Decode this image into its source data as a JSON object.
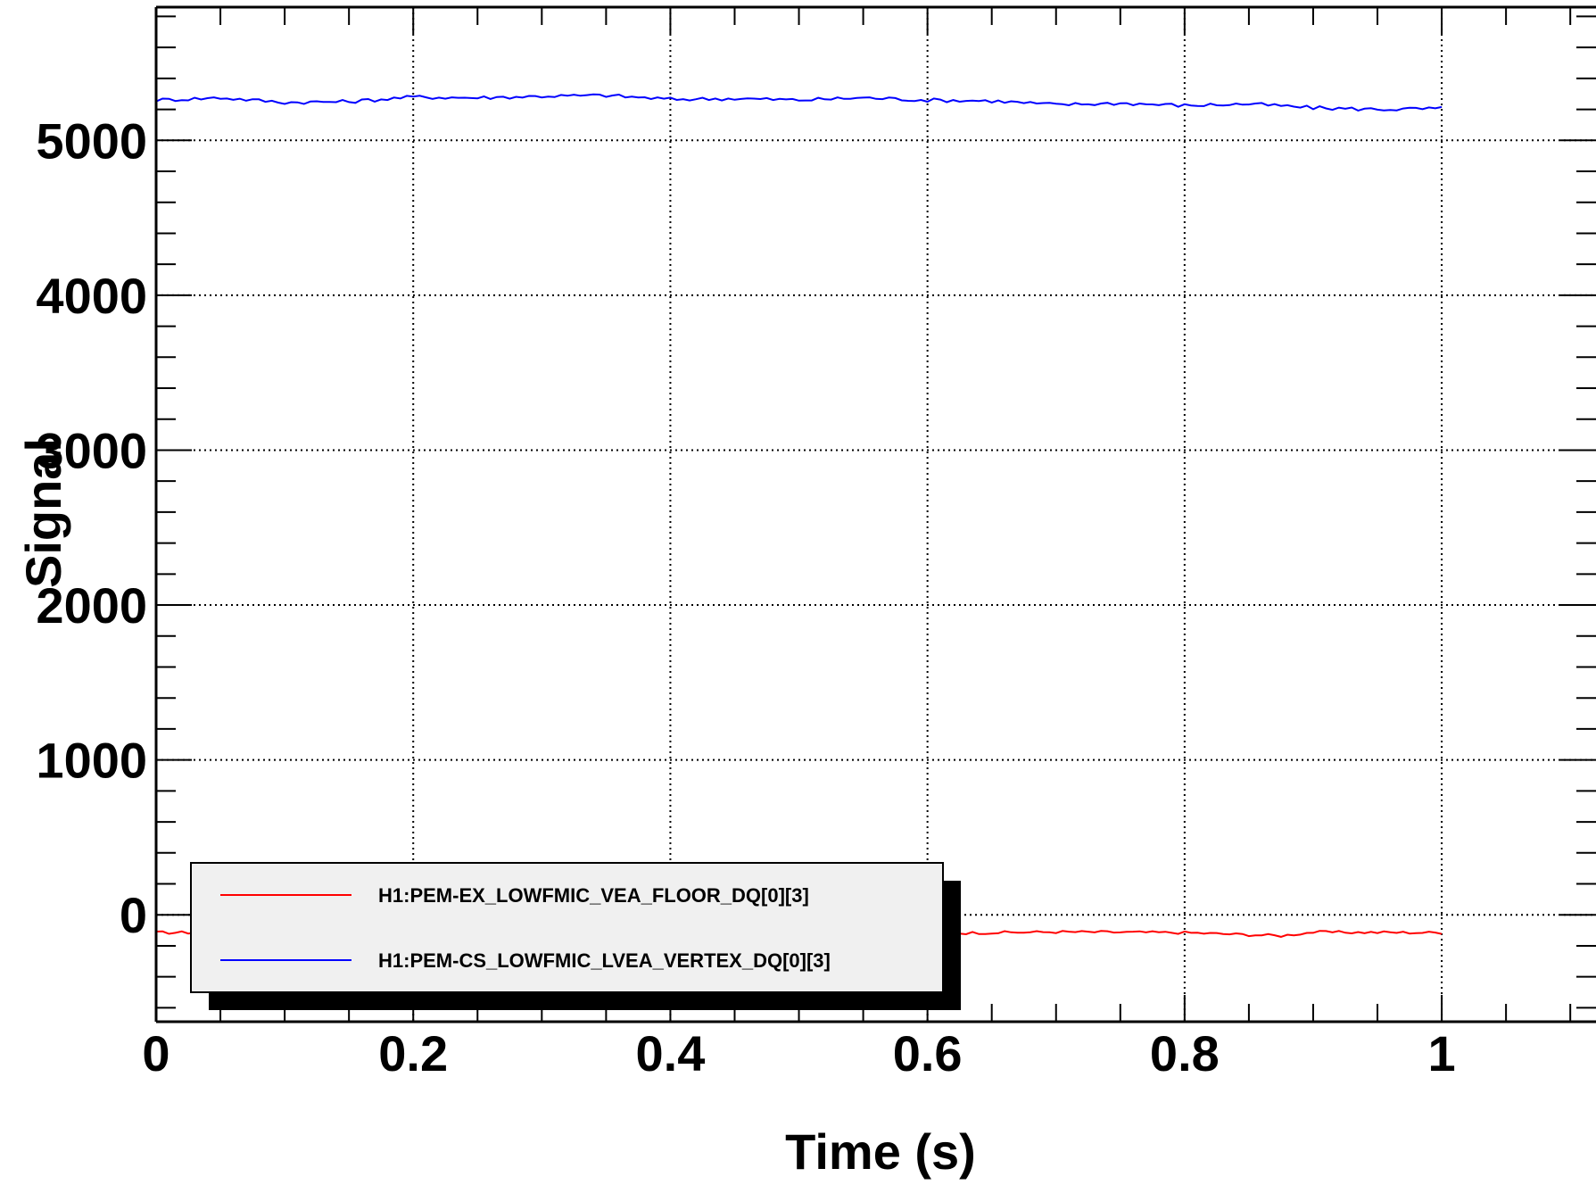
{
  "chart_data": {
    "type": "line",
    "title": "",
    "xlabel": "Time (s)",
    "ylabel": "Signal",
    "xlim": [
      0,
      1.12
    ],
    "ylim": [
      -690,
      5860
    ],
    "x_ticks": [
      0,
      0.2,
      0.4,
      0.6,
      0.8,
      1
    ],
    "x_tick_labels": [
      "0",
      "0.2",
      "0.4",
      "0.6",
      "0.8",
      "1"
    ],
    "y_ticks": [
      0,
      1000,
      2000,
      3000,
      4000,
      5000
    ],
    "y_tick_labels": [
      "0",
      "1000",
      "2000",
      "3000",
      "4000",
      "5000"
    ],
    "grid": true,
    "legend_position": "bottom-left",
    "series": [
      {
        "name": "H1:PEM-EX_LOWFMIC_VEA_FLOOR_DQ[0][3]",
        "color": "#ff0000",
        "baseline": -115,
        "ripple": 9,
        "x": [
          0,
          0.1,
          0.2,
          0.3,
          0.4,
          0.5,
          0.6,
          0.7,
          0.8,
          0.875,
          0.9,
          1.0
        ],
        "y": [
          -115,
          -112,
          -118,
          -110,
          -115,
          -112,
          -120,
          -110,
          -115,
          -135,
          -112,
          -115
        ]
      },
      {
        "name": "H1:PEM-CS_LOWFMIC_LVEA_VERTEX_DQ[0][3]",
        "color": "#0000ff",
        "ripple": 12,
        "x": [
          0,
          0.05,
          0.1,
          0.15,
          0.2,
          0.25,
          0.3,
          0.35,
          0.4,
          0.45,
          0.5,
          0.55,
          0.6,
          0.65,
          0.7,
          0.75,
          0.8,
          0.85,
          0.9,
          0.95,
          1.0
        ],
        "y": [
          5260,
          5275,
          5245,
          5250,
          5280,
          5275,
          5285,
          5290,
          5265,
          5270,
          5260,
          5275,
          5260,
          5255,
          5230,
          5240,
          5225,
          5235,
          5210,
          5200,
          5205
        ]
      }
    ]
  }
}
